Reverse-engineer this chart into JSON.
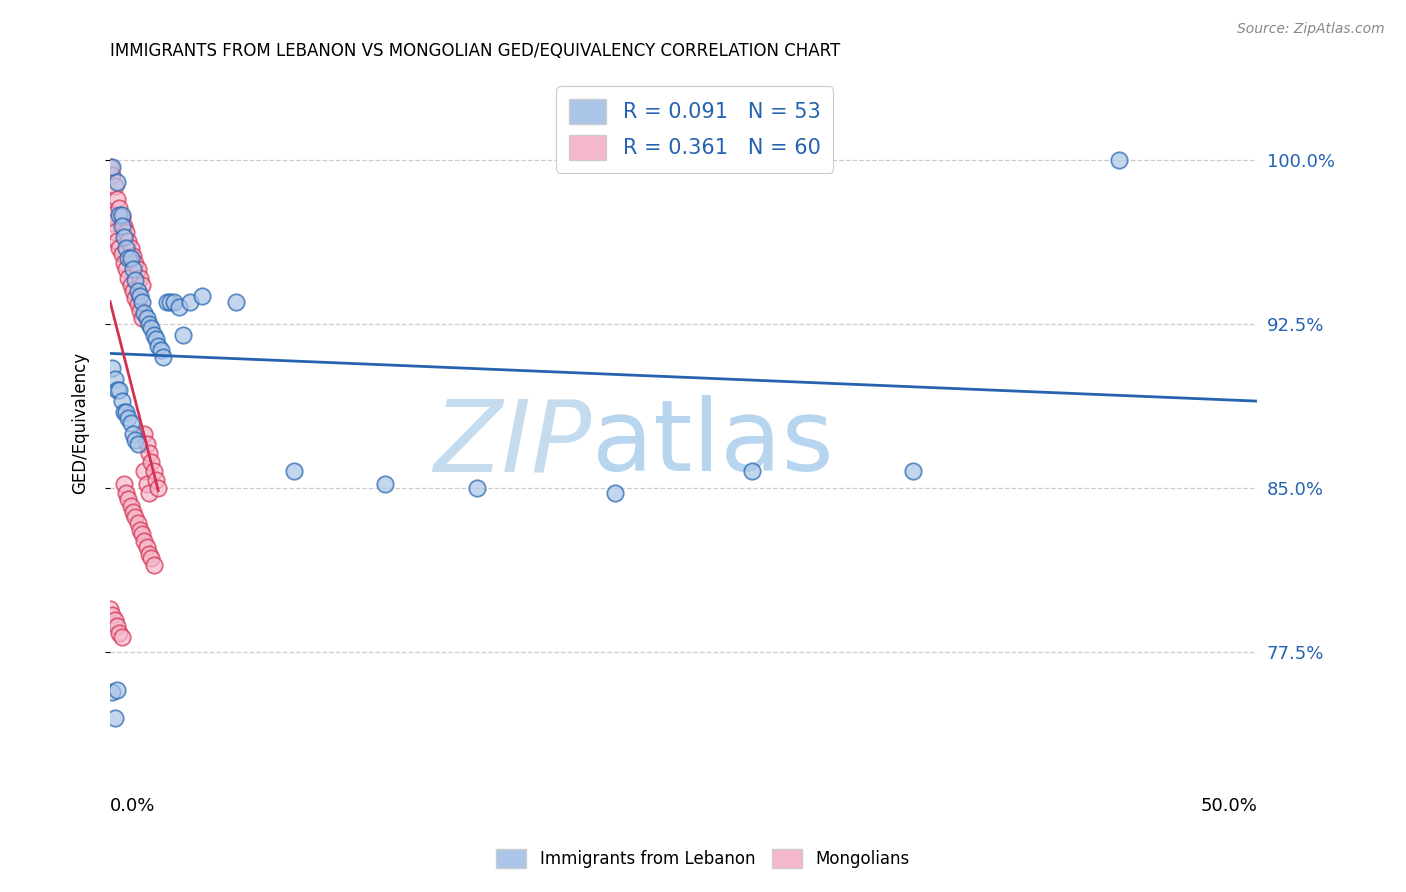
{
  "title": "IMMIGRANTS FROM LEBANON VS MONGOLIAN GED/EQUIVALENCY CORRELATION CHART",
  "source": "Source: ZipAtlas.com",
  "ylabel": "GED/Equivalency",
  "yticks": [
    "77.5%",
    "85.0%",
    "92.5%",
    "100.0%"
  ],
  "ytick_vals": [
    0.775,
    0.85,
    0.925,
    1.0
  ],
  "xlim": [
    0.0,
    0.5
  ],
  "ylim": [
    0.72,
    1.04
  ],
  "R_lebanon": 0.091,
  "N_lebanon": 53,
  "R_mongolian": 0.361,
  "N_mongolian": 60,
  "color_lebanon": "#aac5e8",
  "color_mongolian": "#f5b8cb",
  "line_color_lebanon": "#2563b0",
  "line_color_mongolian": "#d63050",
  "watermark_color": "#daeaf7",
  "lebanon_x": [
    0.001,
    0.003,
    0.004,
    0.005,
    0.005,
    0.006,
    0.007,
    0.008,
    0.009,
    0.01,
    0.011,
    0.012,
    0.013,
    0.014,
    0.015,
    0.016,
    0.017,
    0.018,
    0.019,
    0.02,
    0.021,
    0.022,
    0.023,
    0.025,
    0.026,
    0.028,
    0.03,
    0.032,
    0.035,
    0.04,
    0.001,
    0.002,
    0.003,
    0.004,
    0.005,
    0.006,
    0.007,
    0.008,
    0.009,
    0.01,
    0.011,
    0.012,
    0.055,
    0.08,
    0.12,
    0.16,
    0.22,
    0.28,
    0.35,
    0.44,
    0.001,
    0.002,
    0.003
  ],
  "lebanon_y": [
    0.997,
    0.99,
    0.975,
    0.975,
    0.97,
    0.965,
    0.96,
    0.955,
    0.955,
    0.95,
    0.945,
    0.94,
    0.938,
    0.935,
    0.93,
    0.928,
    0.925,
    0.923,
    0.92,
    0.918,
    0.915,
    0.913,
    0.91,
    0.935,
    0.935,
    0.935,
    0.933,
    0.92,
    0.935,
    0.938,
    0.905,
    0.9,
    0.895,
    0.895,
    0.89,
    0.885,
    0.885,
    0.882,
    0.88,
    0.875,
    0.872,
    0.87,
    0.935,
    0.858,
    0.852,
    0.85,
    0.848,
    0.858,
    0.858,
    1.0,
    0.757,
    0.745,
    0.758
  ],
  "mongolian_x": [
    0.0,
    0.0,
    0.001,
    0.001,
    0.002,
    0.002,
    0.003,
    0.003,
    0.004,
    0.004,
    0.005,
    0.005,
    0.006,
    0.006,
    0.007,
    0.007,
    0.008,
    0.008,
    0.009,
    0.009,
    0.01,
    0.01,
    0.011,
    0.011,
    0.012,
    0.012,
    0.013,
    0.013,
    0.014,
    0.014,
    0.015,
    0.015,
    0.016,
    0.016,
    0.017,
    0.017,
    0.018,
    0.019,
    0.02,
    0.021,
    0.0,
    0.001,
    0.002,
    0.003,
    0.004,
    0.005,
    0.006,
    0.007,
    0.008,
    0.009,
    0.01,
    0.011,
    0.012,
    0.013,
    0.014,
    0.015,
    0.016,
    0.017,
    0.018,
    0.019
  ],
  "mongolian_y": [
    0.997,
    0.975,
    0.993,
    0.971,
    0.988,
    0.967,
    0.982,
    0.963,
    0.978,
    0.96,
    0.974,
    0.957,
    0.97,
    0.953,
    0.967,
    0.95,
    0.963,
    0.946,
    0.96,
    0.943,
    0.956,
    0.94,
    0.953,
    0.937,
    0.95,
    0.934,
    0.946,
    0.931,
    0.943,
    0.928,
    0.875,
    0.858,
    0.87,
    0.852,
    0.866,
    0.848,
    0.862,
    0.858,
    0.854,
    0.85,
    0.795,
    0.792,
    0.79,
    0.787,
    0.784,
    0.782,
    0.852,
    0.848,
    0.845,
    0.842,
    0.839,
    0.837,
    0.834,
    0.831,
    0.829,
    0.826,
    0.823,
    0.82,
    0.818,
    0.815
  ]
}
